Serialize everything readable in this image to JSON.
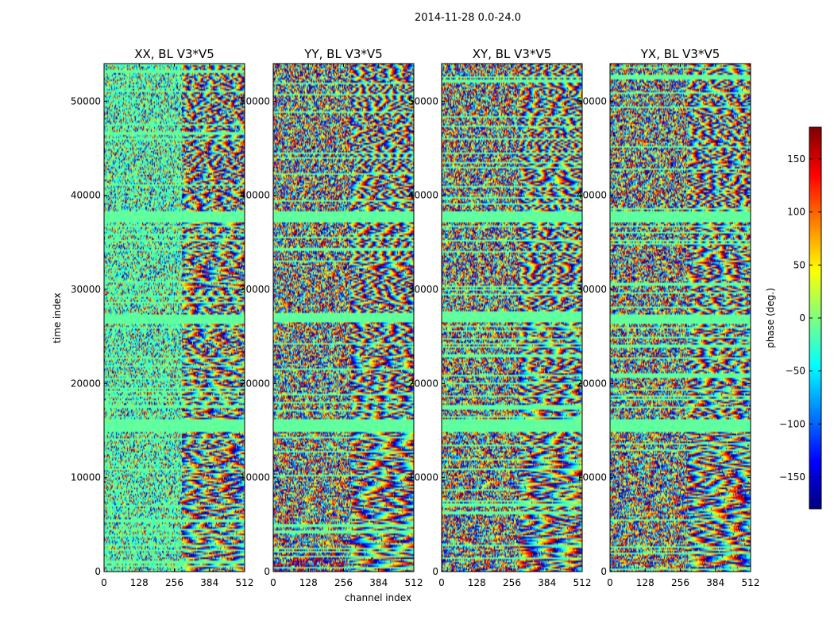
{
  "chart_data": {
    "type": "heatmap",
    "title": "2014-11-28 0.0-24.0",
    "xlabel": "channel index",
    "ylabel": "time index",
    "x_ticks": [
      0,
      128,
      256,
      384,
      512
    ],
    "y_ticks": [
      0,
      10000,
      20000,
      30000,
      40000,
      50000
    ],
    "xlim": [
      0,
      512
    ],
    "ylim": [
      0,
      54000
    ],
    "colorbar": {
      "label": "phase (deg.)",
      "ticks": [
        150,
        100,
        50,
        0,
        -50,
        -100,
        -150
      ],
      "range": [
        -180,
        180
      ],
      "colormap": "jet",
      "colors": [
        "#00007f",
        "#0000ff",
        "#007fff",
        "#00ffff",
        "#7fff7f",
        "#ffff00",
        "#ff7f00",
        "#ff0000",
        "#7f0000"
      ]
    },
    "panels": [
      {
        "title": "XX, BL V3*V5"
      },
      {
        "title": "YY, BL V3*V5"
      },
      {
        "title": "XY, BL V3*V5"
      },
      {
        "title": "YX, BL V3*V5"
      }
    ]
  }
}
